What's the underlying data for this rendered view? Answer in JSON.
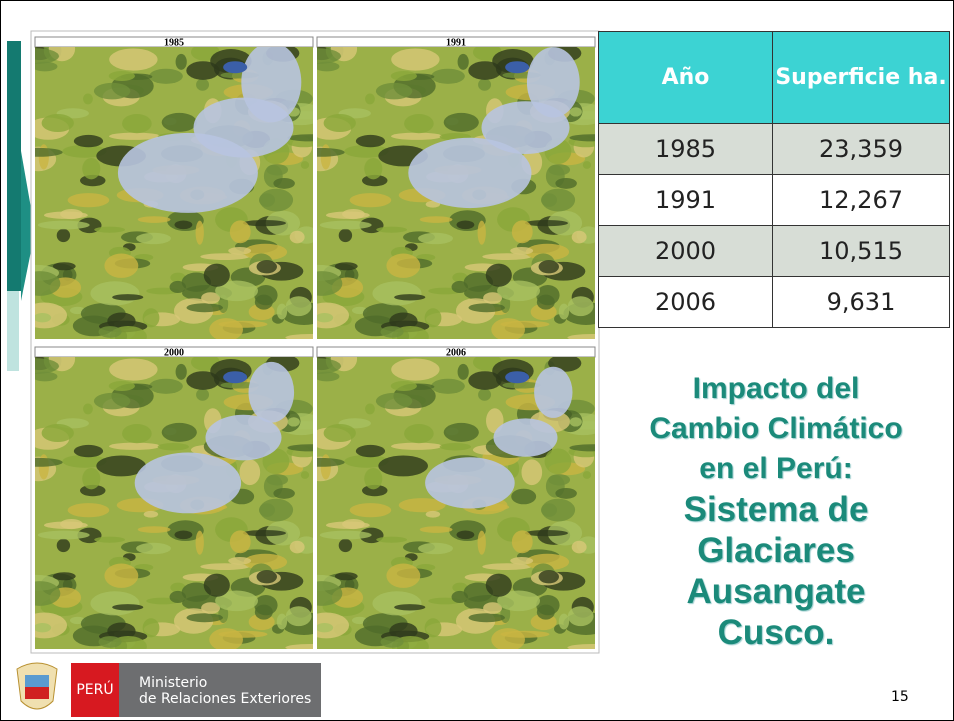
{
  "panels": [
    "1985",
    "1991",
    "2000",
    "2006"
  ],
  "table": {
    "header": [
      "Año",
      "Superficie ha."
    ],
    "rows": [
      [
        "1985",
        "23,359"
      ],
      [
        "1991",
        "12,267"
      ],
      [
        "2000",
        "10,515"
      ],
      [
        "2006",
        "9,631"
      ]
    ]
  },
  "title": {
    "lines_small": [
      "Impacto del",
      "Cambio Climático",
      "en el Perú:"
    ],
    "lines_large": [
      "Sistema de",
      "Glaciares",
      "Ausangate",
      "Cusco."
    ]
  },
  "page_number": "15",
  "logo": {
    "country": "PERÚ",
    "ministry": [
      "Ministerio",
      "de Relaciones Exteriores"
    ]
  }
}
